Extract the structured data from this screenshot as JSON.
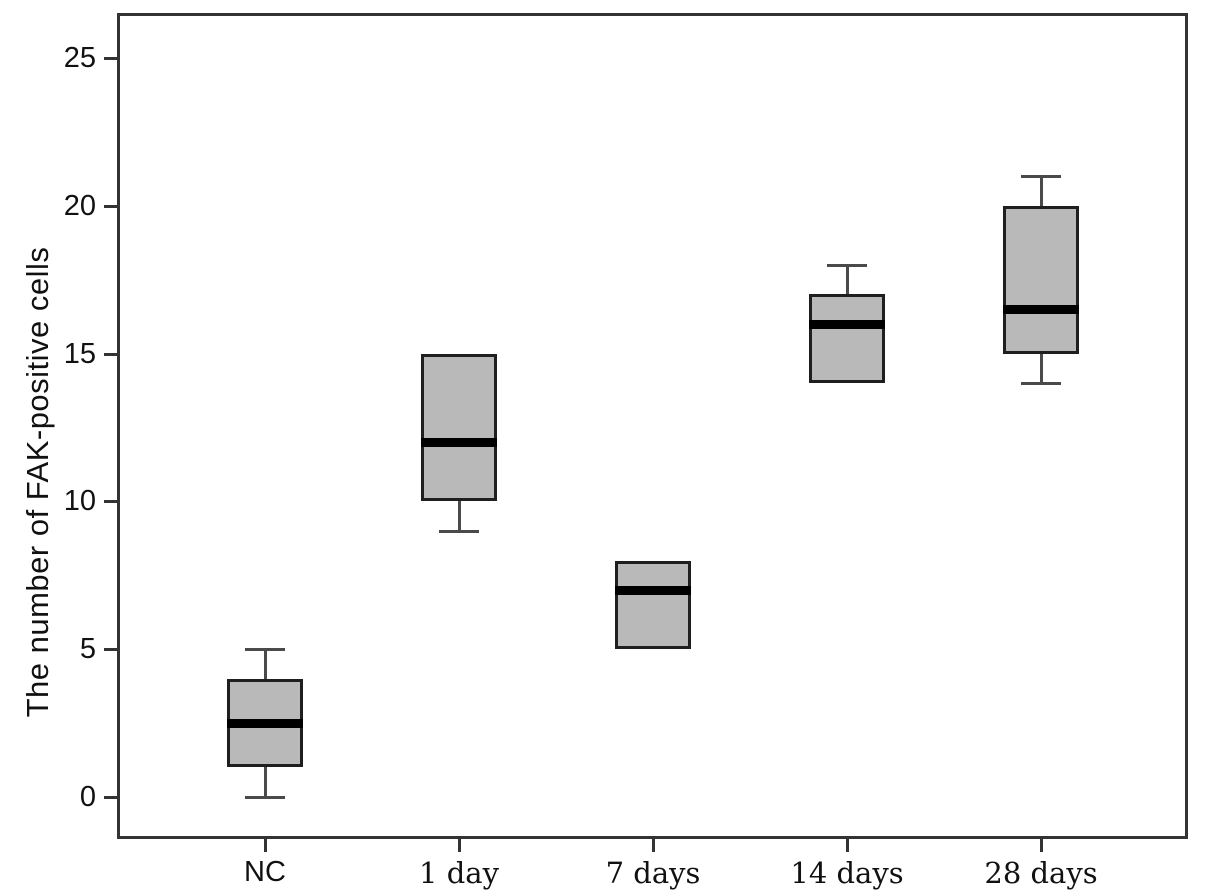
{
  "figure": {
    "title": "",
    "ylabel": "The number of FAK-positive cells"
  },
  "chart_data": {
    "type": "box",
    "title": "",
    "xlabel": "",
    "ylabel": "The number of FAK-positive cells",
    "categories": [
      "NC",
      "1 day",
      "7 days",
      "14 days",
      "28 days"
    ],
    "series": [
      {
        "name": "NC",
        "min": 0,
        "q1": 1,
        "median": 2.5,
        "q3": 4,
        "max": 5
      },
      {
        "name": "1 day",
        "min": 9,
        "q1": 10,
        "median": 12,
        "q3": 15,
        "max": 15
      },
      {
        "name": "7 days",
        "min": 5,
        "q1": 5,
        "median": 7,
        "q3": 8,
        "max": 8
      },
      {
        "name": "14 days",
        "min": 14,
        "q1": 14,
        "median": 16,
        "q3": 17,
        "max": 18
      },
      {
        "name": "28 days",
        "min": 14,
        "q1": 15,
        "median": 16.5,
        "q3": 20,
        "max": 21
      }
    ],
    "yticks": [
      0,
      5,
      10,
      15,
      20,
      25
    ],
    "ylim": [
      -1.4,
      26.5
    ],
    "grid": false,
    "legend": "none",
    "colors": {
      "box_fill": "#b9b9b9",
      "box_border": "#1f1f1f",
      "median": "#000000",
      "whisker": "#4a4a4a",
      "axis": "#333333",
      "text": "#111111",
      "background": "#ffffff"
    }
  }
}
